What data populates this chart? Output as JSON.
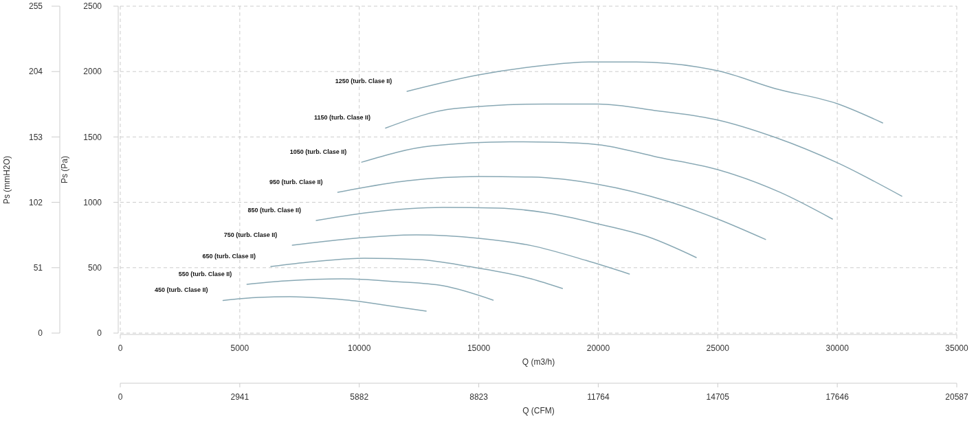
{
  "chart_data": {
    "type": "line",
    "xlabel": "Q (m3/h)",
    "ylabel": "Ps (Pa)",
    "y2label": "Ps (mmH2O)",
    "x2label": "Q (CFM)",
    "xlim": [
      0,
      35000
    ],
    "xticks": [
      0,
      5000,
      10000,
      15000,
      20000,
      25000,
      30000,
      35000
    ],
    "ylim": [
      0,
      2500
    ],
    "yticks": [
      0,
      500,
      1000,
      1500,
      2000,
      2500
    ],
    "y2lim": [
      0,
      255
    ],
    "y2ticks": [
      0,
      51,
      102,
      153,
      204,
      255
    ],
    "x2lim": [
      0,
      20587
    ],
    "x2ticks": [
      0,
      2941,
      5882,
      8823,
      11764,
      14705,
      17646,
      20587
    ],
    "grid": true,
    "marker": "none",
    "line_style": "solid",
    "series": [
      {
        "name": "450 (turb. Clase II)",
        "color": "#88a8b4",
        "x": [
          4300,
          5800,
          7100,
          8400,
          9800,
          11200,
          12800
        ],
        "values": [
          250,
          273,
          278,
          268,
          247,
          210,
          168
        ]
      },
      {
        "name": "550 (turb. Clase II)",
        "color": "#88a8b4",
        "x": [
          5300,
          6900,
          9300,
          11500,
          13500,
          15600
        ],
        "values": [
          373,
          399,
          415,
          394,
          362,
          252
        ]
      },
      {
        "name": "650 (turb. Clase II)",
        "color": "#88a8b4",
        "x": [
          6300,
          8000,
          10200,
          12500,
          14600,
          17200,
          18500
        ],
        "values": [
          509,
          545,
          572,
          562,
          509,
          415,
          341
        ]
      },
      {
        "name": "750 (turb. Clase II)",
        "color": "#88a8b4",
        "x": [
          7200,
          9500,
          12400,
          15000,
          17200,
          19500,
          21300
        ],
        "values": [
          672,
          720,
          751,
          725,
          669,
          555,
          452
        ]
      },
      {
        "name": "850 (turb. Clase II)",
        "color": "#88a8b4",
        "x": [
          8200,
          10500,
          13500,
          15800,
          17800,
          20000,
          22100,
          24100
        ],
        "values": [
          861,
          925,
          961,
          956,
          920,
          835,
          735,
          578
        ]
      },
      {
        "name": "950 (turb. Clase II)",
        "color": "#88a8b4",
        "x": [
          9100,
          12000,
          15000,
          17200,
          20000,
          22900,
          25000,
          27000
        ],
        "values": [
          1077,
          1165,
          1197,
          1193,
          1137,
          1008,
          872,
          716
        ]
      },
      {
        "name": "1050 (turb. Clase II)",
        "color": "#88a8b4",
        "x": [
          10100,
          13000,
          16300,
          18000,
          20000,
          22500,
          25000,
          27600,
          29800
        ],
        "values": [
          1307,
          1431,
          1463,
          1460,
          1441,
          1345,
          1250,
          1077,
          872
        ]
      },
      {
        "name": "1150 (turb. Clase II)",
        "color": "#88a8b4",
        "x": [
          11100,
          14000,
          17800,
          20000,
          22500,
          25000,
          27400,
          30000,
          32700
        ],
        "values": [
          1568,
          1717,
          1752,
          1752,
          1699,
          1630,
          1497,
          1303,
          1047
        ]
      },
      {
        "name": "1250 (turb. Clase II)",
        "color": "#88a8b4",
        "x": [
          12000,
          15000,
          17800,
          19600,
          21600,
          25000,
          27400,
          30000,
          31900
        ],
        "values": [
          1849,
          1975,
          2048,
          2073,
          2073,
          2006,
          1870,
          1754,
          1607
        ]
      }
    ]
  }
}
